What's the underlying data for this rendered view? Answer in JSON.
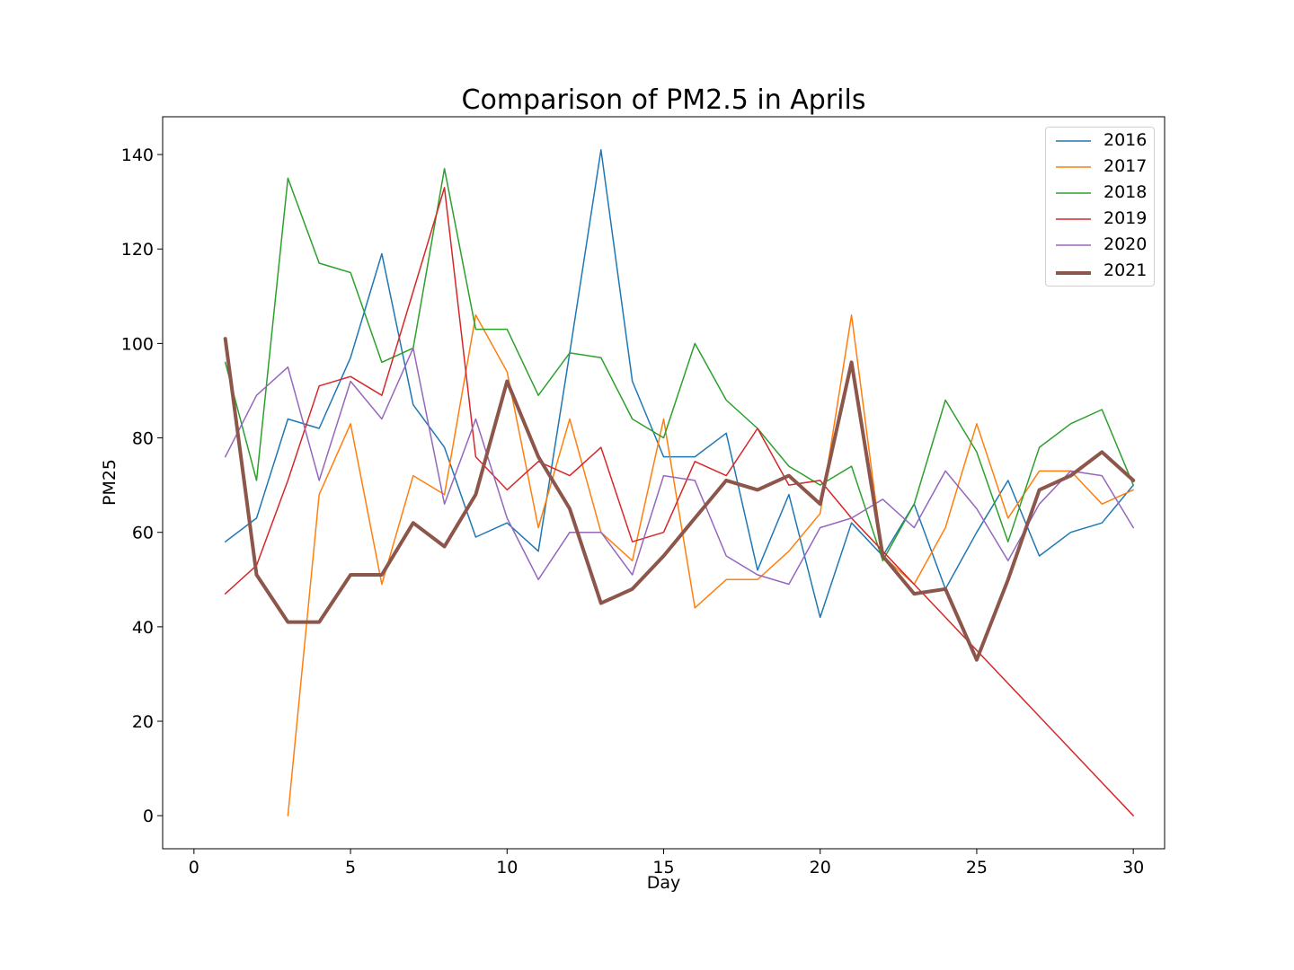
{
  "chart_data": {
    "type": "line",
    "title": "Comparison of PM2.5 in Aprils",
    "xlabel": "Day",
    "ylabel": "PM25",
    "xlim": [
      -1,
      31
    ],
    "ylim": [
      -7,
      148
    ],
    "xticks": [
      0,
      5,
      10,
      15,
      20,
      25,
      30
    ],
    "yticks": [
      0,
      20,
      40,
      60,
      80,
      100,
      120,
      140
    ],
    "grid": false,
    "legend_position": "top-right",
    "x": [
      1,
      2,
      3,
      4,
      5,
      6,
      7,
      8,
      9,
      10,
      11,
      12,
      13,
      14,
      15,
      16,
      17,
      18,
      19,
      20,
      21,
      22,
      23,
      24,
      25,
      26,
      27,
      28,
      29,
      30
    ],
    "series": [
      {
        "name": "2016",
        "color": "#1f77b4",
        "width": 1.5,
        "values": [
          58,
          63,
          84,
          82,
          97,
          119,
          87,
          78,
          59,
          62,
          56,
          98,
          141,
          92,
          76,
          76,
          81,
          52,
          68,
          42,
          62,
          55,
          66,
          48,
          60,
          71,
          55,
          60,
          62,
          70
        ]
      },
      {
        "name": "2017",
        "color": "#ff7f0e",
        "width": 1.5,
        "values": [
          null,
          null,
          0,
          68,
          83,
          49,
          72,
          68,
          106,
          94,
          61,
          84,
          60,
          54,
          84,
          44,
          50,
          50,
          56,
          64,
          106,
          55,
          49,
          61,
          83,
          63,
          73,
          73,
          66,
          69
        ]
      },
      {
        "name": "2018",
        "color": "#2ca02c",
        "width": 1.5,
        "values": [
          96,
          71,
          135,
          117,
          115,
          96,
          99,
          137,
          103,
          103,
          89,
          98,
          97,
          84,
          80,
          100,
          88,
          82,
          74,
          70,
          74,
          54,
          66,
          88,
          77,
          58,
          78,
          83,
          86,
          70
        ]
      },
      {
        "name": "2019",
        "color": "#d62728",
        "width": 1.5,
        "values": [
          47,
          53,
          71,
          91,
          93,
          89,
          111,
          133,
          76,
          69,
          75,
          72,
          78,
          58,
          60,
          75,
          72,
          82,
          70,
          71,
          63,
          56,
          null,
          null,
          null,
          null,
          null,
          null,
          null,
          0
        ]
      },
      {
        "name": "2020",
        "color": "#9467bd",
        "width": 1.5,
        "values": [
          76,
          89,
          95,
          71,
          92,
          84,
          99,
          66,
          84,
          63,
          50,
          60,
          60,
          51,
          72,
          71,
          55,
          51,
          49,
          61,
          63,
          67,
          61,
          73,
          65,
          54,
          66,
          73,
          72,
          61
        ]
      },
      {
        "name": "2021",
        "color": "#8c564b",
        "width": 4,
        "values": [
          101,
          51,
          41,
          41,
          51,
          51,
          62,
          57,
          68,
          92,
          76,
          65,
          45,
          48,
          55,
          63,
          71,
          69,
          72,
          66,
          96,
          55,
          47,
          48,
          33,
          50,
          69,
          72,
          77,
          71
        ]
      }
    ]
  }
}
